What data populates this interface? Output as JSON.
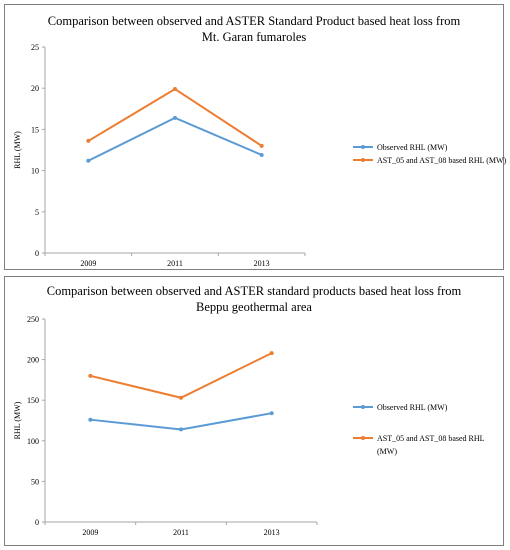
{
  "chart_data": [
    {
      "type": "line",
      "title_lines": [
        "Comparison between observed and ASTER Standard Product based heat loss from",
        "Mt. Garan fumaroles"
      ],
      "ylabel": "RHL (MW)",
      "xlabel": "",
      "categories": [
        "2009",
        "2011",
        "2013"
      ],
      "ylim": [
        0,
        25
      ],
      "yticks": [
        "0",
        "5",
        "10",
        "15",
        "20",
        "25"
      ],
      "series": [
        {
          "name": "Observed RHL (MW)",
          "color": "#5b9bd5",
          "values": [
            11.2,
            16.4,
            11.9
          ]
        },
        {
          "name": "AST_05 and AST_08 based RHL (MW)",
          "color": "#ed7d31",
          "values": [
            13.6,
            19.9,
            13.0
          ]
        }
      ],
      "legend_position": "right",
      "grid": false
    },
    {
      "type": "line",
      "title_lines": [
        "Comparison between observed and ASTER standard products based heat loss from",
        "Beppu geothermal area"
      ],
      "ylabel": "RHL (MW)",
      "xlabel": "",
      "categories": [
        "2009",
        "2011",
        "2013"
      ],
      "ylim": [
        0,
        250
      ],
      "yticks": [
        "0",
        "50",
        "100",
        "150",
        "200",
        "250"
      ],
      "series": [
        {
          "name": "Observed RHL (MW)",
          "color": "#5b9bd5",
          "values": [
            126,
            114,
            134
          ]
        },
        {
          "name": "AST_05 and AST_08 based RHL (MW)",
          "legend_lines": [
            "AST_05 and AST_08 based RHL",
            "(MW)"
          ],
          "color": "#ed7d31",
          "values": [
            180,
            153,
            208
          ]
        }
      ],
      "legend_position": "right",
      "grid": false
    }
  ]
}
